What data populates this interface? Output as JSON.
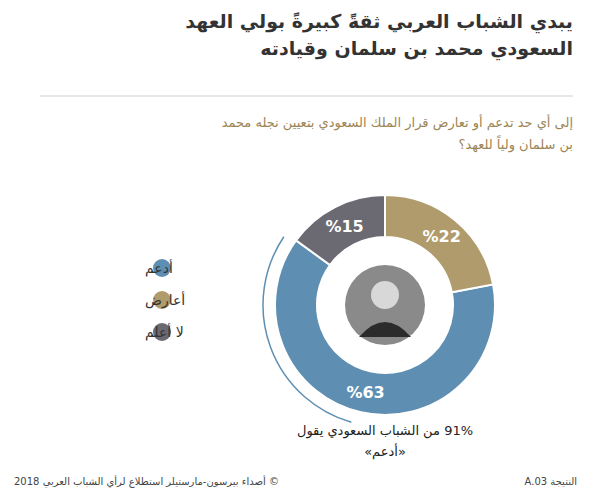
{
  "chart_data": {
    "type": "donut",
    "title": "يبدي الشباب العربي ثقةً كبيرةً بولي العهد السعودي محمد بن سلمان وقيادته",
    "subtitle": "إلى أي حد تدعم أو تعارض قرار الملك السعودي بتعيين نجله محمد بن سلمان ولياً للعهد؟",
    "categories": [
      "أدعم",
      "أعارض",
      "لا أعلم"
    ],
    "values": [
      63,
      22,
      15
    ],
    "value_labels": [
      "%63",
      "%22",
      "%15"
    ],
    "colors": [
      "#5e8fb3",
      "#b09b6c",
      "#6b6972"
    ],
    "data_labels": true,
    "legend": "left",
    "annotation": "91% من الشباب السعودي يقول «أدعم»",
    "figure_label": "النتيجة A.03",
    "source": "© أصداء بيرسون-مارستيلر استطلاع لرأي الشباب العربي 2018"
  }
}
